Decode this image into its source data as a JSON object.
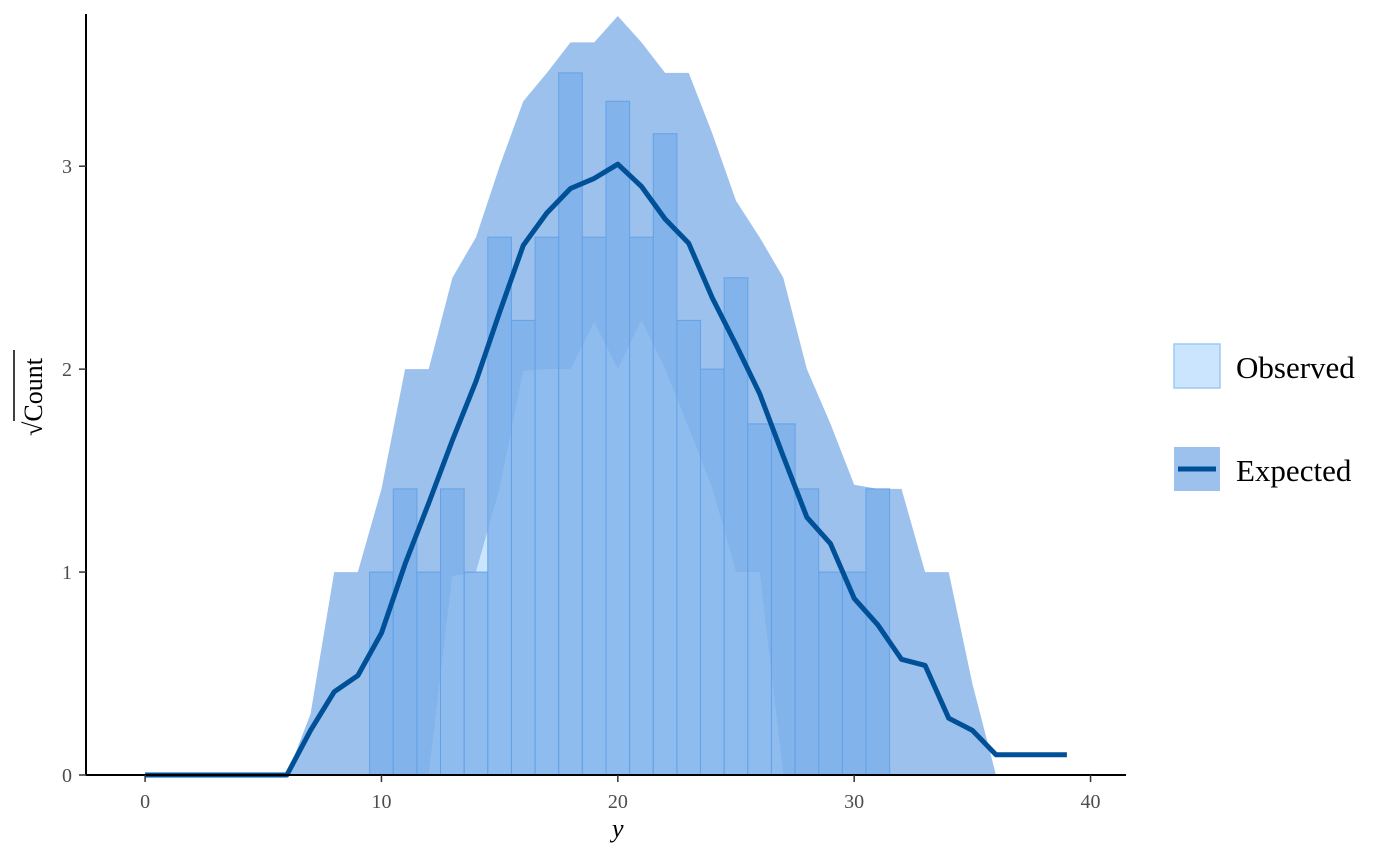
{
  "chart_data": {
    "type": "bar",
    "xlabel": "y",
    "ylabel": "Count",
    "ylabel_prefix": "√",
    "xlim": [
      -2.5,
      41.5
    ],
    "ylim": [
      0,
      3.75
    ],
    "x_ticks": [
      0,
      10,
      20,
      30,
      40
    ],
    "y_ticks": [
      0,
      1,
      2,
      3
    ],
    "grid": false,
    "legend_position": "right",
    "bars": {
      "x": [
        10,
        11,
        12,
        13,
        14,
        15,
        16,
        17,
        18,
        19,
        20,
        21,
        22,
        23,
        24,
        25,
        26,
        27,
        28,
        29,
        30,
        31
      ],
      "values": [
        1.0,
        1.41,
        1.0,
        1.41,
        1.0,
        2.65,
        2.24,
        2.65,
        3.46,
        2.65,
        3.32,
        2.65,
        3.16,
        2.24,
        2.0,
        2.45,
        1.73,
        1.73,
        1.41,
        1.0,
        1.0,
        1.41
      ]
    },
    "expected": {
      "x": [
        0,
        1,
        2,
        3,
        4,
        5,
        6,
        7,
        8,
        9,
        10,
        11,
        12,
        13,
        14,
        15,
        16,
        17,
        18,
        19,
        20,
        21,
        22,
        23,
        24,
        25,
        26,
        27,
        28,
        29,
        30,
        31,
        32,
        33,
        34,
        35,
        36,
        37,
        38,
        39
      ],
      "values": [
        0,
        0,
        0,
        0,
        0,
        0,
        0,
        0.22,
        0.41,
        0.49,
        0.7,
        1.04,
        1.34,
        1.65,
        1.94,
        2.28,
        2.61,
        2.77,
        2.89,
        2.94,
        3.01,
        2.9,
        2.74,
        2.62,
        2.35,
        2.12,
        1.88,
        1.57,
        1.27,
        1.14,
        0.87,
        0.74,
        0.57,
        0.54,
        0.28,
        0.22,
        0.1,
        0.1,
        0.1,
        0.1
      ]
    },
    "interval": {
      "x": [
        6,
        7,
        8,
        9,
        10,
        11,
        12,
        13,
        14,
        15,
        16,
        17,
        18,
        19,
        20,
        21,
        22,
        23,
        24,
        25,
        26,
        27,
        28,
        29,
        30,
        31,
        32,
        33,
        34,
        35,
        36
      ],
      "upper": [
        0,
        0.3,
        1.0,
        1.0,
        1.41,
        2.0,
        2.0,
        2.45,
        2.65,
        3.0,
        3.32,
        3.46,
        3.61,
        3.61,
        3.74,
        3.61,
        3.46,
        3.46,
        3.16,
        2.83,
        2.65,
        2.45,
        2.0,
        1.73,
        1.43,
        1.41,
        1.41,
        1.0,
        1.0,
        0.45,
        0.0
      ],
      "lower": [
        0,
        0,
        0,
        0,
        0,
        0,
        0,
        0.98,
        1.0,
        1.41,
        1.99,
        2.0,
        2.0,
        2.23,
        2.0,
        2.24,
        2.0,
        1.71,
        1.41,
        1.0,
        1.0,
        0.0,
        0,
        0,
        0,
        0,
        0,
        0,
        0,
        0,
        0
      ]
    },
    "series": [
      {
        "name": "Observed",
        "color": "#cce5ff",
        "stroke": "#9ccaf5"
      },
      {
        "name": "Expected",
        "color": "#005098",
        "band_color": "#9bc1ec"
      }
    ],
    "colors": {
      "band": "#9bc1ec",
      "bar_overlap": "#7aaee9",
      "bar_stroke": "#63a2e8",
      "observed_fill": "#cce5ff",
      "line": "#005098",
      "axis": "#000000",
      "tick_text": "#4d4d4d"
    }
  }
}
